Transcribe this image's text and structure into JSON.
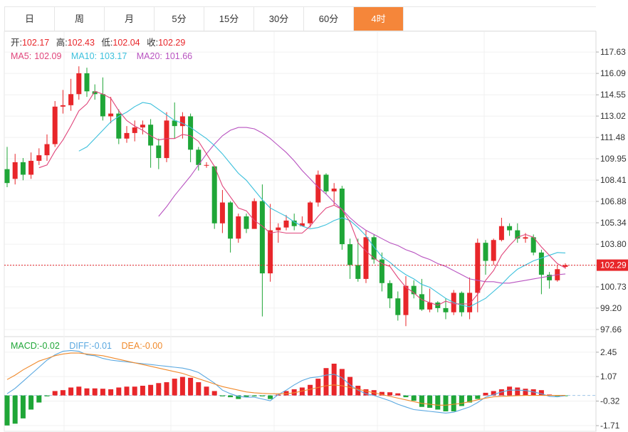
{
  "tabs": [
    {
      "label": "日",
      "active": false
    },
    {
      "label": "周",
      "active": false
    },
    {
      "label": "月",
      "active": false
    },
    {
      "label": "5分",
      "active": false
    },
    {
      "label": "15分",
      "active": false
    },
    {
      "label": "30分",
      "active": false
    },
    {
      "label": "60分",
      "active": false
    },
    {
      "label": "4时",
      "active": true
    }
  ],
  "ohlc_legend": {
    "open_label": "开:",
    "open": "102.17",
    "high_label": "高:",
    "high": "102.43",
    "low_label": "低:",
    "low": "102.04",
    "close_label": "收:",
    "close": "102.29"
  },
  "ma_legend": {
    "ma5_label": "MA5:",
    "ma5": "102.09",
    "ma10_label": "MA10:",
    "ma10": "103.17",
    "ma20_label": "MA20:",
    "ma20": "101.66"
  },
  "macd_legend": {
    "macd_label": "MACD:",
    "macd": "-0.02",
    "diff_label": "DIFF:",
    "diff": "-0.01",
    "dea_label": "DEA:",
    "dea": "-0.00"
  },
  "colors": {
    "up": "#e8262a",
    "down": "#1fa637",
    "ma5": "#e0457b",
    "ma10": "#3cc0dc",
    "ma20": "#b853c0",
    "diff": "#5aa8e0",
    "dea": "#f08a2c",
    "active_tab": "#f5863a",
    "price_line": "#e8262a"
  },
  "chart_data": [
    {
      "type": "candlestick",
      "ylim": [
        97.3,
        118.3
      ],
      "yticks": [
        "117.63",
        "116.09",
        "114.55",
        "113.02",
        "111.48",
        "109.95",
        "108.41",
        "106.88",
        "105.34",
        "103.80",
        "102.27",
        "100.73",
        "99.20",
        "97.66"
      ],
      "last_price": "102.29",
      "candles": [
        [
          109.2,
          108.2,
          110.8,
          107.9
        ],
        [
          108.5,
          109.7,
          110.3,
          108.1
        ],
        [
          109.7,
          108.8,
          110.0,
          108.4
        ],
        [
          108.8,
          109.8,
          110.4,
          108.5
        ],
        [
          109.8,
          110.2,
          110.7,
          109.5
        ],
        [
          110.2,
          111.0,
          111.7,
          109.8
        ],
        [
          111.0,
          113.7,
          114.1,
          110.8
        ],
        [
          113.7,
          113.8,
          114.9,
          113.2
        ],
        [
          113.8,
          114.6,
          115.7,
          113.4
        ],
        [
          114.6,
          116.1,
          116.6,
          114.2
        ],
        [
          116.1,
          114.8,
          116.5,
          114.4
        ],
        [
          114.8,
          114.6,
          115.3,
          114.2
        ],
        [
          114.6,
          113.0,
          115.8,
          112.7
        ],
        [
          113.0,
          113.2,
          114.4,
          112.5
        ],
        [
          113.2,
          111.4,
          113.5,
          111.0
        ],
        [
          111.4,
          111.8,
          112.3,
          111.1
        ],
        [
          111.8,
          112.2,
          112.7,
          111.2
        ],
        [
          112.2,
          112.4,
          112.7,
          111.7
        ],
        [
          112.4,
          110.9,
          112.8,
          109.3
        ],
        [
          110.9,
          110.0,
          111.4,
          109.2
        ],
        [
          110.0,
          112.7,
          113.3,
          109.7
        ],
        [
          112.7,
          112.3,
          114.0,
          111.4
        ],
        [
          112.3,
          113.0,
          113.3,
          111.4
        ],
        [
          113.0,
          110.6,
          113.2,
          109.7
        ],
        [
          110.6,
          109.5,
          110.8,
          109.1
        ],
        [
          109.5,
          109.5,
          109.7,
          109.3
        ],
        [
          109.4,
          105.3,
          109.4,
          104.9
        ],
        [
          105.3,
          106.8,
          107.7,
          104.6
        ],
        [
          106.8,
          104.2,
          106.9,
          103.2
        ],
        [
          104.2,
          105.8,
          106.0,
          103.9
        ],
        [
          105.8,
          104.9,
          106.0,
          104.6
        ],
        [
          104.9,
          106.9,
          107.1,
          105.2
        ],
        [
          106.9,
          101.7,
          108.1,
          98.6
        ],
        [
          101.7,
          104.8,
          106.7,
          101.1
        ],
        [
          104.8,
          105.0,
          105.3,
          103.9
        ],
        [
          105.0,
          105.5,
          105.9,
          104.8
        ],
        [
          105.5,
          105.1,
          106.0,
          104.8
        ],
        [
          105.1,
          105.3,
          105.8,
          105.1
        ],
        [
          105.3,
          106.8,
          106.9,
          105.0
        ],
        [
          106.8,
          108.8,
          109.1,
          106.5
        ],
        [
          108.8,
          107.6,
          108.9,
          107.4
        ],
        [
          107.6,
          107.8,
          108.2,
          106.6
        ],
        [
          107.8,
          103.8,
          108.0,
          103.4
        ],
        [
          103.8,
          102.3,
          104.2,
          101.3
        ],
        [
          102.3,
          101.3,
          104.2,
          101.1
        ],
        [
          101.3,
          104.3,
          104.8,
          101.0
        ],
        [
          104.3,
          102.7,
          104.5,
          102.4
        ],
        [
          102.7,
          101.0,
          103.2,
          100.4
        ],
        [
          101.0,
          99.9,
          101.2,
          99.2
        ],
        [
          99.9,
          98.7,
          100.4,
          98.3
        ],
        [
          98.7,
          100.8,
          101.5,
          97.9
        ],
        [
          100.8,
          100.2,
          101.2,
          99.9
        ],
        [
          100.2,
          99.1,
          101.3,
          99.0
        ],
        [
          99.1,
          99.6,
          100.6,
          98.9
        ],
        [
          99.6,
          99.2,
          99.7,
          98.9
        ],
        [
          99.2,
          98.9,
          99.9,
          98.4
        ],
        [
          98.9,
          100.3,
          100.5,
          98.7
        ],
        [
          100.3,
          98.9,
          100.4,
          98.6
        ],
        [
          98.9,
          100.3,
          101.4,
          98.4
        ],
        [
          100.3,
          103.9,
          104.2,
          98.9
        ],
        [
          103.9,
          102.6,
          104.1,
          101.6
        ],
        [
          102.6,
          104.1,
          104.2,
          102.3
        ],
        [
          104.1,
          105.1,
          105.7,
          104.0
        ],
        [
          105.1,
          104.8,
          105.3,
          104.4
        ],
        [
          104.8,
          104.2,
          105.3,
          103.9
        ],
        [
          104.2,
          104.3,
          104.6,
          103.9
        ],
        [
          104.3,
          103.2,
          104.5,
          103.0
        ],
        [
          103.2,
          101.6,
          103.4,
          100.2
        ],
        [
          101.6,
          101.2,
          101.8,
          100.6
        ],
        [
          101.2,
          102.0,
          102.3,
          101.1
        ],
        [
          102.17,
          102.29,
          102.43,
          102.04
        ]
      ],
      "ma5": [
        null,
        null,
        null,
        null,
        109.3,
        109.5,
        110.5,
        111.3,
        112.3,
        113.4,
        113.9,
        114.8,
        114.6,
        114.3,
        113.4,
        112.7,
        112.3,
        112.0,
        111.6,
        111.3,
        111.4,
        111.4,
        111.7,
        111.6,
        111.2,
        110.3,
        109.4,
        108.0,
        107.2,
        106.4,
        106.2,
        105.5,
        105.1,
        104.6,
        104.7,
        104.6,
        104.6,
        104.6,
        105.1,
        105.8,
        106.4,
        106.6,
        106.3,
        105.4,
        103.9,
        103.3,
        102.8,
        102.4,
        102.2,
        101.4,
        100.7,
        100.3,
        99.8,
        99.6,
        99.4,
        99.7,
        99.5,
        99.5,
        99.5,
        100.2,
        101.2,
        101.9,
        103.0,
        103.7,
        104.3,
        104.5,
        104.3,
        103.6,
        103.0,
        102.4,
        102.09
      ],
      "ma10": [
        null,
        null,
        null,
        null,
        null,
        null,
        null,
        null,
        null,
        110.5,
        110.8,
        111.4,
        112.0,
        112.6,
        113.0,
        113.3,
        113.7,
        114.0,
        113.9,
        113.5,
        113.1,
        112.7,
        112.5,
        112.2,
        111.8,
        111.4,
        110.9,
        110.3,
        109.6,
        108.9,
        108.4,
        107.7,
        107.0,
        106.4,
        106.1,
        105.8,
        105.4,
        105.1,
        104.9,
        105.0,
        105.2,
        105.5,
        105.7,
        105.5,
        105.0,
        104.4,
        103.6,
        102.9,
        102.5,
        102.0,
        101.6,
        101.3,
        100.9,
        100.7,
        100.3,
        99.9,
        99.6,
        99.4,
        99.3,
        99.6,
        99.9,
        100.4,
        100.9,
        101.5,
        102.0,
        102.3,
        102.6,
        102.8,
        103.0,
        103.2,
        103.17
      ],
      "ma20": [
        null,
        null,
        null,
        null,
        null,
        null,
        null,
        null,
        null,
        null,
        null,
        null,
        null,
        null,
        null,
        null,
        null,
        null,
        null,
        105.8,
        106.5,
        107.3,
        108.0,
        108.7,
        109.5,
        110.3,
        111.0,
        111.6,
        112.0,
        112.2,
        112.2,
        112.1,
        111.8,
        111.4,
        110.9,
        110.4,
        109.8,
        109.1,
        108.5,
        107.9,
        107.4,
        106.8,
        106.3,
        105.7,
        105.2,
        104.8,
        104.5,
        104.2,
        103.9,
        103.7,
        103.4,
        103.2,
        102.9,
        102.7,
        102.4,
        102.2,
        101.9,
        101.6,
        101.3,
        101.2,
        101.1,
        101.1,
        101.0,
        101.0,
        101.1,
        101.2,
        101.3,
        101.4,
        101.5,
        101.6,
        101.66
      ]
    },
    {
      "type": "macd",
      "ylim": [
        -1.95,
        3.05
      ],
      "yticks": [
        "2.45",
        "1.07",
        "-0.32",
        "-1.71"
      ],
      "macd": [
        -1.7,
        -1.6,
        -1.3,
        -0.8,
        -0.4,
        -0.05,
        0.25,
        0.3,
        0.45,
        0.5,
        0.4,
        0.4,
        0.38,
        0.35,
        0.45,
        0.5,
        0.5,
        0.55,
        0.6,
        0.7,
        0.75,
        0.95,
        1.05,
        1.0,
        0.75,
        0.5,
        0.25,
        -0.05,
        -0.1,
        -0.2,
        -0.1,
        -0.05,
        -0.05,
        -0.2,
        0.05,
        0.25,
        0.35,
        0.45,
        0.6,
        0.95,
        1.55,
        1.8,
        1.5,
        1.05,
        0.55,
        0.35,
        0.3,
        0.2,
        0.18,
        0.12,
        -0.1,
        -0.3,
        -0.65,
        -0.7,
        -0.8,
        -0.9,
        -0.9,
        -0.6,
        -0.4,
        -0.2,
        0.15,
        0.25,
        0.35,
        0.5,
        0.45,
        0.38,
        0.35,
        0.3,
        0.05,
        -0.04,
        -0.02
      ],
      "diff": [
        0.1,
        0.4,
        0.8,
        1.2,
        1.6,
        2.0,
        2.3,
        2.5,
        2.55,
        2.5,
        2.3,
        2.25,
        2.1,
        2.0,
        1.95,
        1.9,
        1.85,
        1.8,
        1.75,
        1.7,
        1.65,
        1.6,
        1.55,
        1.45,
        1.3,
        1.0,
        0.7,
        0.3,
        0.1,
        -0.05,
        -0.1,
        -0.1,
        -0.2,
        -0.3,
        0.05,
        0.3,
        0.6,
        0.85,
        1.0,
        1.05,
        1.15,
        1.2,
        1.0,
        0.6,
        0.3,
        0.1,
        0.0,
        -0.15,
        -0.3,
        -0.5,
        -0.65,
        -0.8,
        -0.85,
        -0.9,
        -0.95,
        -1.0,
        -0.95,
        -0.8,
        -0.65,
        -0.4,
        -0.1,
        0.05,
        0.2,
        0.3,
        0.3,
        0.28,
        0.2,
        0.1,
        -0.05,
        -0.08,
        -0.01
      ],
      "dea": [
        0.9,
        1.15,
        1.45,
        1.7,
        1.95,
        2.1,
        2.25,
        2.35,
        2.4,
        2.4,
        2.35,
        2.3,
        2.25,
        2.15,
        2.05,
        1.95,
        1.85,
        1.75,
        1.65,
        1.55,
        1.45,
        1.35,
        1.25,
        1.1,
        0.95,
        0.8,
        0.65,
        0.5,
        0.4,
        0.3,
        0.2,
        0.15,
        0.12,
        0.1,
        0.1,
        0.1,
        0.15,
        0.25,
        0.35,
        0.45,
        0.55,
        0.6,
        0.55,
        0.45,
        0.35,
        0.25,
        0.15,
        0.05,
        -0.05,
        -0.15,
        -0.25,
        -0.35,
        -0.45,
        -0.5,
        -0.55,
        -0.55,
        -0.5,
        -0.45,
        -0.35,
        -0.25,
        -0.15,
        -0.08,
        -0.05,
        -0.03,
        -0.01,
        0.0,
        0.0,
        0.0,
        0.0,
        0.0,
        -0.0
      ]
    }
  ]
}
